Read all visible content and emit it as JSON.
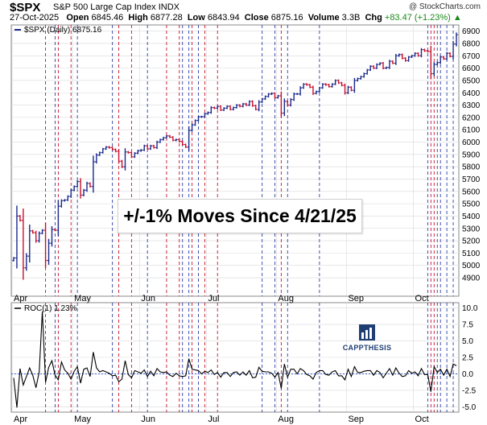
{
  "header": {
    "ticker": "$SPX",
    "index_name": "S&P 500 Large Cap Index",
    "exchange": "INDX",
    "brand": "@ StockCharts.com",
    "date": "27-Oct-2025",
    "open_label": "Open",
    "open_value": "6845.46",
    "high_label": "High",
    "high_value": "6877.28",
    "low_label": "Low",
    "low_value": "6843.94",
    "close_label": "Close",
    "close_value": "6875.16",
    "volume_label": "Volume",
    "volume_value": "3.3B",
    "chg_label": "Chg",
    "chg_value": "+83.47 (+1.23%)",
    "chg_arrow": "▲"
  },
  "annotation": "+/-1% Moves Since 4/21/25",
  "logo_text": "CAPPTHESIS",
  "colors": {
    "up_bar": "#1a2a8c",
    "down_bar": "#c8102e",
    "up_marker": "#2c3fa8",
    "down_marker": "#c8102e",
    "roc_line": "#000000",
    "zero_line": "#3a5fd0",
    "grid": "#d9d9d9",
    "chg_text": "#1a8a1a"
  },
  "chart_data": [
    {
      "type": "ohlc",
      "legend": "$SPX (Daily) 6875.16",
      "y_axis_side": "right",
      "ylim": [
        4750,
        6950
      ],
      "yticks": [
        4900,
        5000,
        5100,
        5200,
        5300,
        5400,
        5500,
        5600,
        5700,
        5800,
        5900,
        6000,
        6100,
        6200,
        6300,
        6400,
        6500,
        6600,
        6700,
        6800,
        6900
      ],
      "x_labels": [
        "Apr",
        "May",
        "Jun",
        "Jul",
        "Aug",
        "Sep",
        "Oct"
      ],
      "x_label_index": [
        0,
        19,
        40,
        61,
        83,
        105,
        126
      ],
      "grid": true,
      "closes": [
        5060,
        5400,
        5365,
        4980,
        5075,
        5280,
        5265,
        5200,
        5260,
        5285,
        5040,
        5180,
        5290,
        5285,
        5480,
        5525,
        5530,
        5560,
        5610,
        5640,
        5680,
        5570,
        5610,
        5665,
        5640,
        5840,
        5895,
        5915,
        5945,
        5960,
        5955,
        5940,
        5925,
        5845,
        5800,
        5920,
        5915,
        5880,
        5910,
        5930,
        5935,
        5970,
        5945,
        5970,
        5955,
        6000,
        6020,
        6035,
        6050,
        6040,
        6015,
        6020,
        6005,
        5980,
        5960,
        6095,
        6140,
        6175,
        6205,
        6205,
        6230,
        6240,
        6280,
        6275,
        6290,
        6260,
        6275,
        6290,
        6265,
        6280,
        6300,
        6290,
        6310,
        6300,
        6330,
        6295,
        6265,
        6325,
        6350,
        6370,
        6390,
        6395,
        6360,
        6375,
        6235,
        6330,
        6300,
        6345,
        6390,
        6390,
        6440,
        6470,
        6465,
        6445,
        6395,
        6410,
        6440,
        6470,
        6465,
        6450,
        6470,
        6500,
        6480,
        6460,
        6400,
        6445,
        6420,
        6500,
        6515,
        6530,
        6555,
        6585,
        6615,
        6600,
        6630,
        6640,
        6600,
        6605,
        6655,
        6640,
        6700,
        6710,
        6680,
        6660,
        6690,
        6700,
        6720,
        6700,
        6750,
        6740,
        6735,
        6555,
        6630,
        6645,
        6690,
        6675,
        6720,
        6695,
        6795,
        6870
      ],
      "up_move_days": [
        13,
        20,
        31,
        42,
        53,
        55,
        58,
        78,
        82,
        86,
        96,
        130,
        133,
        134,
        136,
        138
      ],
      "down_move_days": [
        10,
        14,
        18,
        33,
        37,
        48,
        52,
        56,
        60,
        64,
        84,
        131,
        132
      ]
    },
    {
      "type": "line",
      "legend": "ROC(1) 1.23%",
      "y_axis_side": "right",
      "ylim": [
        -5.8,
        10.8
      ],
      "yticks": [
        -5.0,
        -2.5,
        0.0,
        2.5,
        5.0,
        7.5,
        10.0
      ],
      "x_labels": [
        "Apr",
        "May",
        "Jun",
        "Jul",
        "Aug",
        "Sep",
        "Oct"
      ],
      "grid": true,
      "values": [
        -0.6,
        -5.1,
        0.8,
        -1.7,
        -0.4,
        0.9,
        -0.2,
        -2.1,
        0.3,
        9.5,
        -1.3,
        1.0,
        2.0,
        -0.2,
        -0.9,
        1.8,
        0.6,
        0.1,
        -0.8,
        0.4,
        1.1,
        -1.4,
        0.7,
        0.9,
        -0.4,
        3.3,
        0.9,
        0.3,
        0.5,
        0.3,
        0.1,
        -0.3,
        -0.2,
        -1.2,
        -0.8,
        2.0,
        -0.1,
        -0.6,
        0.5,
        0.3,
        0.1,
        0.6,
        -0.4,
        0.4,
        -0.3,
        0.8,
        0.3,
        0.2,
        0.3,
        -0.2,
        -0.4,
        0.1,
        -0.3,
        -0.4,
        -0.3,
        2.3,
        0.7,
        0.6,
        0.5,
        0.0,
        0.4,
        0.2,
        0.6,
        -0.1,
        0.2,
        -0.5,
        0.2,
        0.2,
        -0.4,
        0.2,
        0.3,
        -0.2,
        0.3,
        -0.2,
        0.5,
        -0.6,
        -0.5,
        1.0,
        0.4,
        0.3,
        0.3,
        0.1,
        -0.5,
        0.2,
        -2.2,
        1.5,
        -0.5,
        0.7,
        0.7,
        0.0,
        0.8,
        0.5,
        -0.1,
        -0.3,
        -0.8,
        0.2,
        0.5,
        0.5,
        -0.1,
        -0.2,
        0.3,
        0.5,
        -0.3,
        -0.3,
        -0.9,
        0.7,
        -0.4,
        1.1,
        0.2,
        0.2,
        0.4,
        0.5,
        0.5,
        -0.2,
        0.5,
        0.2,
        -0.6,
        0.1,
        0.8,
        -0.2,
        0.9,
        0.1,
        -0.4,
        -0.3,
        0.5,
        0.1,
        0.3,
        -0.3,
        0.8,
        -0.1,
        -0.1,
        -2.7,
        1.1,
        0.2,
        0.7,
        -0.2,
        0.7,
        -0.4,
        1.5,
        1.23
      ]
    }
  ]
}
